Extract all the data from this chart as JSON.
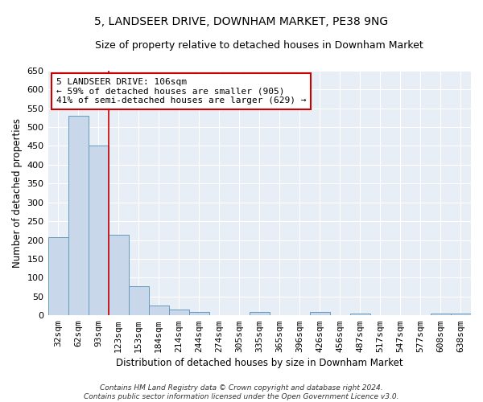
{
  "title": "5, LANDSEER DRIVE, DOWNHAM MARKET, PE38 9NG",
  "subtitle": "Size of property relative to detached houses in Downham Market",
  "xlabel": "Distribution of detached houses by size in Downham Market",
  "ylabel": "Number of detached properties",
  "bar_labels": [
    "32sqm",
    "62sqm",
    "93sqm",
    "123sqm",
    "153sqm",
    "184sqm",
    "214sqm",
    "244sqm",
    "274sqm",
    "305sqm",
    "335sqm",
    "365sqm",
    "396sqm",
    "426sqm",
    "456sqm",
    "487sqm",
    "517sqm",
    "547sqm",
    "577sqm",
    "608sqm",
    "638sqm"
  ],
  "bar_values": [
    208,
    530,
    452,
    213,
    78,
    27,
    16,
    10,
    0,
    0,
    8,
    0,
    0,
    8,
    0,
    5,
    0,
    0,
    0,
    5,
    5
  ],
  "bar_color": "#c8d8ea",
  "bar_edge_color": "#6699bb",
  "ylim": [
    0,
    650
  ],
  "yticks": [
    0,
    50,
    100,
    150,
    200,
    250,
    300,
    350,
    400,
    450,
    500,
    550,
    600,
    650
  ],
  "vline_x": 2.5,
  "vline_color": "#cc0000",
  "annotation_text": "5 LANDSEER DRIVE: 106sqm\n← 59% of detached houses are smaller (905)\n41% of semi-detached houses are larger (629) →",
  "annotation_box_facecolor": "#ffffff",
  "annotation_box_edgecolor": "#cc0000",
  "footer_line1": "Contains HM Land Registry data © Crown copyright and database right 2024.",
  "footer_line2": "Contains public sector information licensed under the Open Government Licence v3.0.",
  "background_color": "#ffffff",
  "plot_bg_color": "#e8eef5",
  "grid_color": "#ffffff",
  "title_fontsize": 10,
  "subtitle_fontsize": 9,
  "label_fontsize": 8.5,
  "tick_fontsize": 8,
  "annotation_fontsize": 8,
  "footer_fontsize": 6.5
}
